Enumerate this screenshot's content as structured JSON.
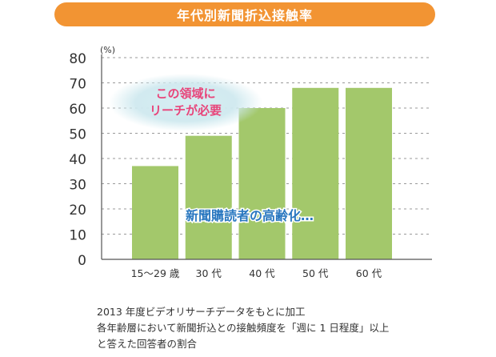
{
  "title": "年代別新聞折込接触率",
  "chart_data": {
    "type": "bar",
    "categories": [
      "15～29 歳",
      "30 代",
      "40 代",
      "50 代",
      "60 代"
    ],
    "values": [
      37,
      49,
      60,
      68,
      68
    ],
    "unit_label": "(%)",
    "ylim": [
      0,
      80
    ],
    "yticks": [
      0,
      10,
      20,
      30,
      40,
      50,
      60,
      70,
      80
    ],
    "grid": true,
    "bar_color": "#a3c86b",
    "annotations": {
      "bubble_line1": "この領域に",
      "bubble_line2": "リーチが必要",
      "trend_text": "新聞購読者の高齢化…"
    }
  },
  "notes": [
    "2013 年度ビデオリサーチデータをもとに加工",
    "各年齢層において新聞折込との接触頻度を「週に 1 日程度」以上",
    "と答えた回答者の割合"
  ],
  "colors": {
    "title_bg": "#f29433",
    "bubble_fill": "#cfe9ef",
    "bubble_text": "#e8447a",
    "trend_text": "#2a78c0"
  }
}
